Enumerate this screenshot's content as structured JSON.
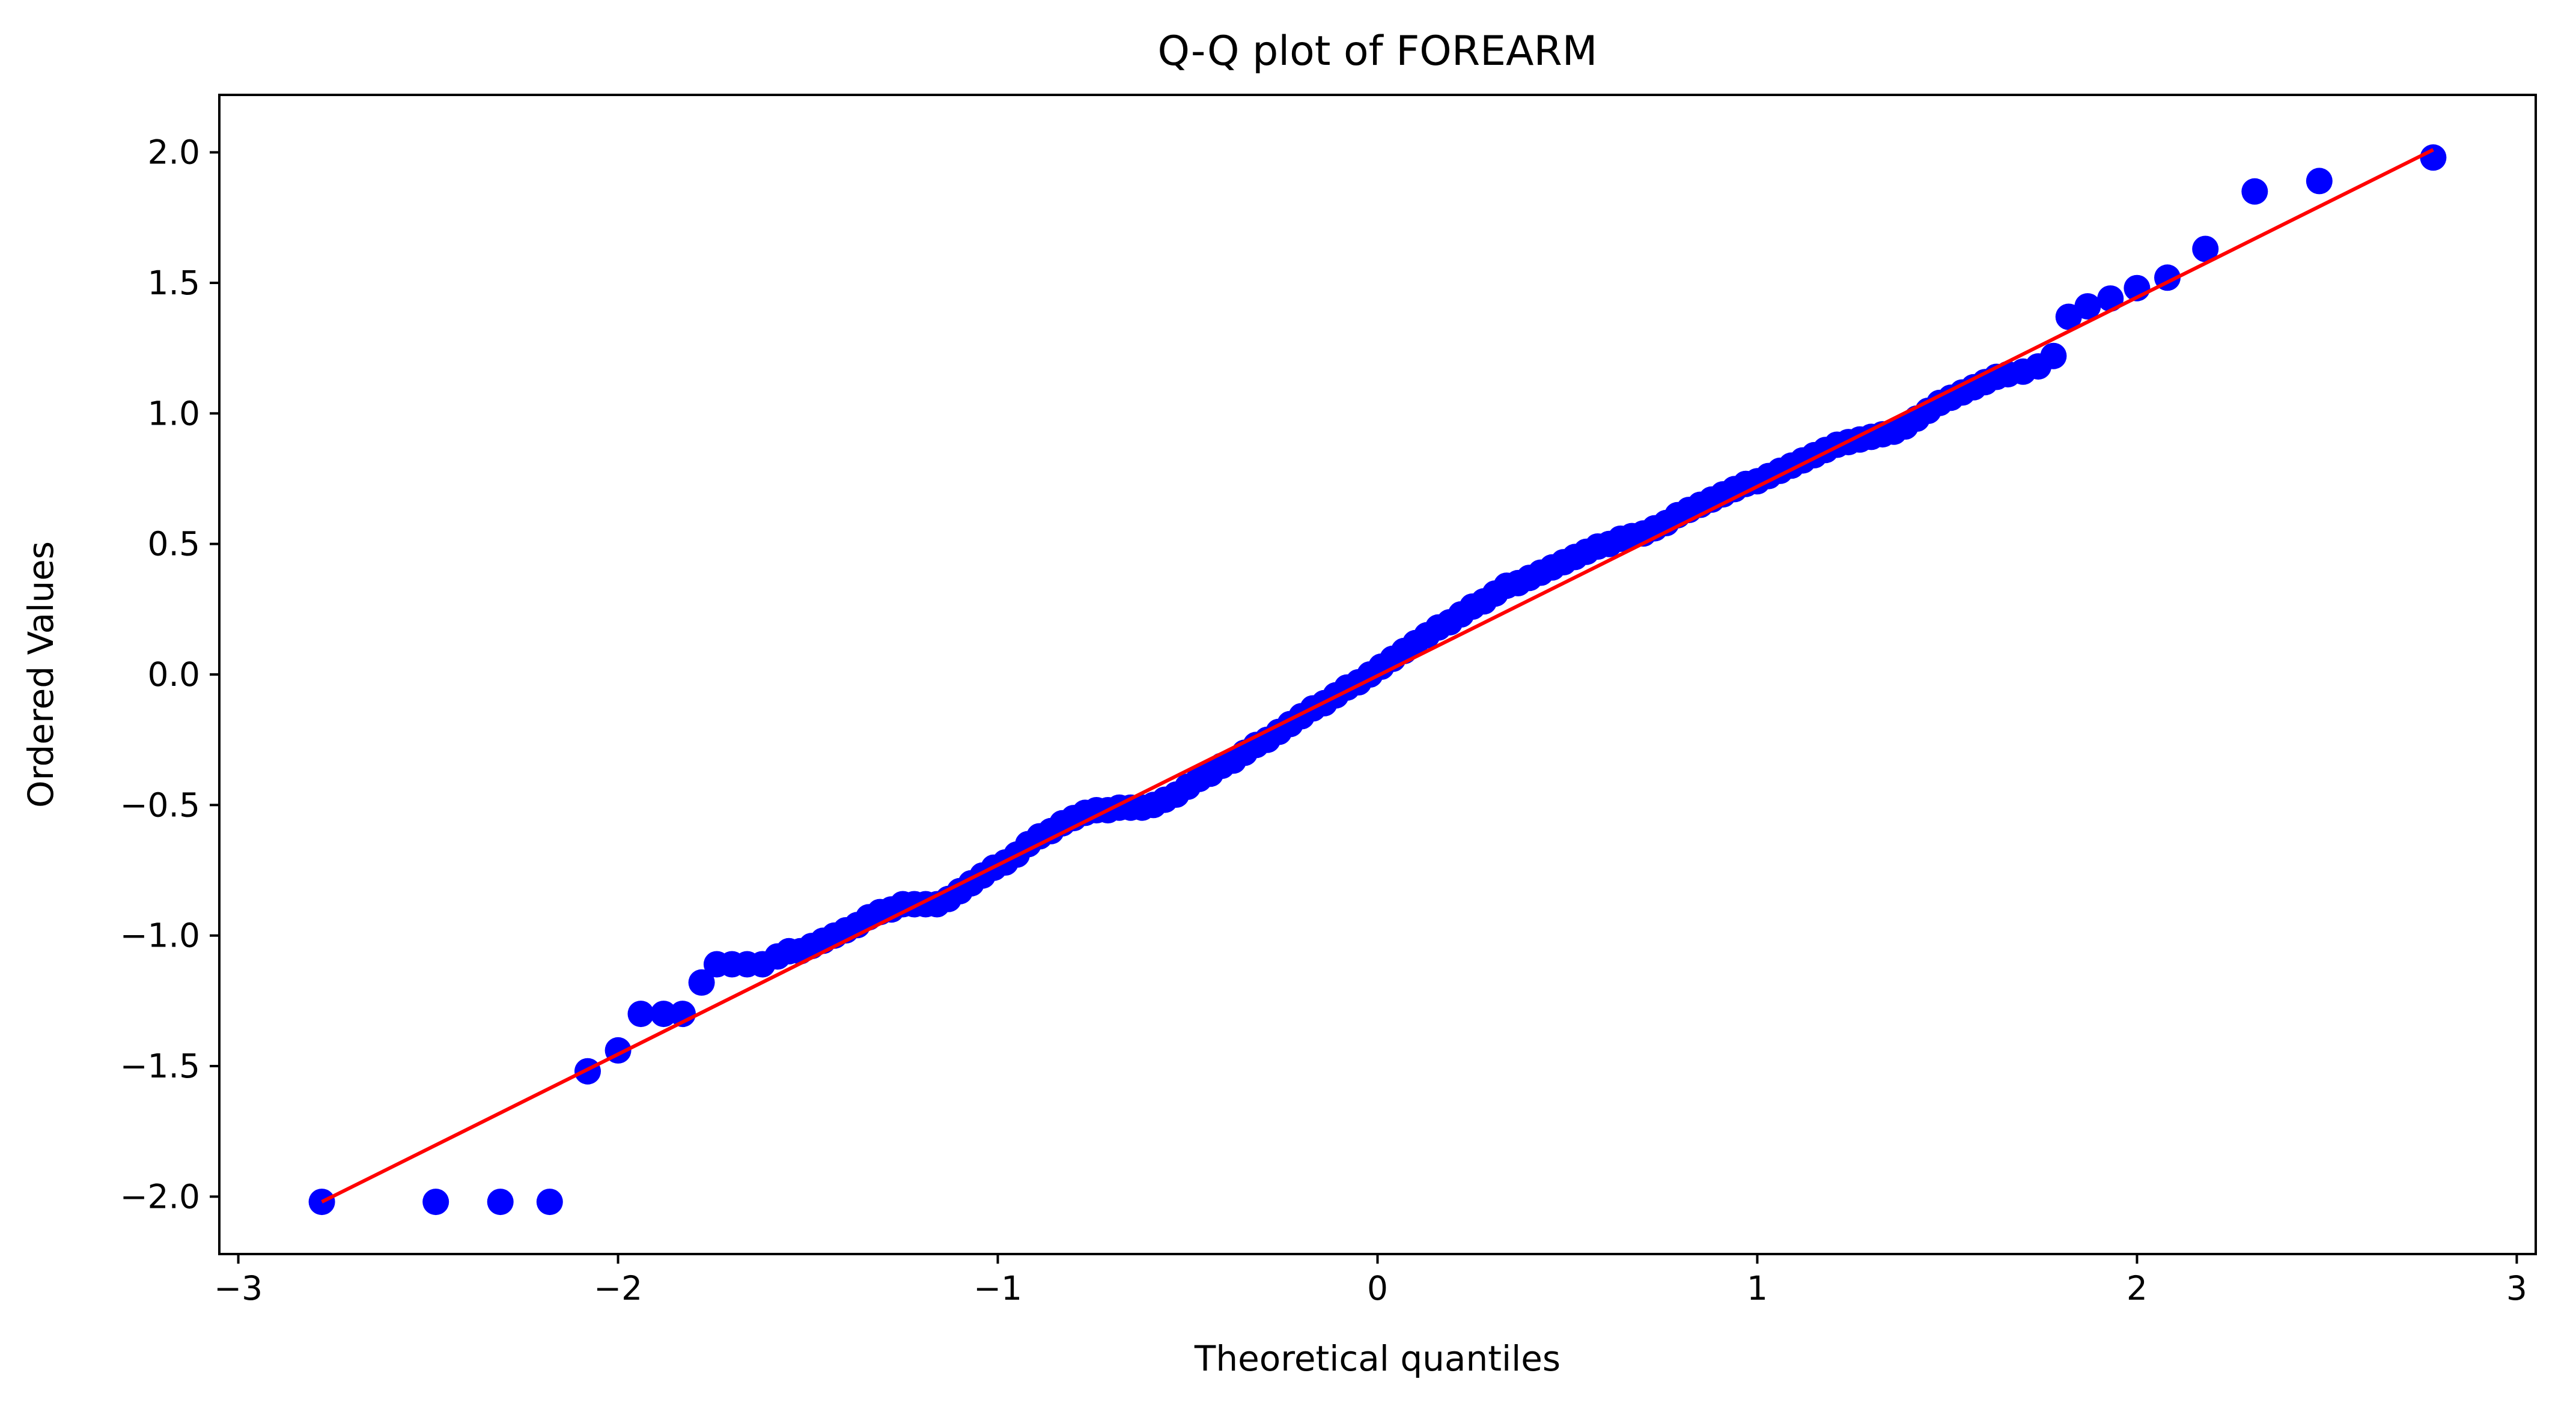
{
  "chart_data": {
    "type": "scatter",
    "title": "Q-Q plot of FOREARM",
    "xlabel": "Theoretical quantiles",
    "ylabel": "Ordered Values",
    "xlim": [
      -3.05,
      3.05
    ],
    "ylim": [
      -2.22,
      2.22
    ],
    "xticks": [
      -3,
      -2,
      -1,
      0,
      1,
      2,
      3
    ],
    "xtick_labels": [
      "−3",
      "−2",
      "−1",
      "0",
      "1",
      "2",
      "3"
    ],
    "yticks": [
      -2.0,
      -1.5,
      -1.0,
      -0.5,
      0.0,
      0.5,
      1.0,
      1.5,
      2.0
    ],
    "ytick_labels": [
      "−2.0",
      "−1.5",
      "−1.0",
      "−0.5",
      "0.0",
      "0.5",
      "1.0",
      "1.5",
      "2.0"
    ],
    "grid": false,
    "legend": "none",
    "colors": {
      "points": "#0000ff",
      "fit_line": "#ff0000",
      "axes": "#000000",
      "background": "#ffffff"
    },
    "fit_line": {
      "x": [
        -2.78,
        2.78
      ],
      "y": [
        -2.02,
        2.01
      ]
    },
    "points": {
      "x": [
        -2.78,
        -2.48,
        -2.31,
        -2.18,
        -2.08,
        -2.0,
        -1.94,
        -1.88,
        -1.83,
        -1.78,
        -1.74,
        -1.7,
        -1.66,
        -1.62,
        -1.58,
        -1.55,
        -1.52,
        -1.49,
        -1.46,
        -1.43,
        -1.4,
        -1.37,
        -1.34,
        -1.31,
        -1.28,
        -1.25,
        -1.22,
        -1.19,
        -1.16,
        -1.13,
        -1.1,
        -1.07,
        -1.04,
        -1.01,
        -0.98,
        -0.95,
        -0.92,
        -0.89,
        -0.86,
        -0.83,
        -0.8,
        -0.77,
        -0.74,
        -0.71,
        -0.68,
        -0.65,
        -0.62,
        -0.59,
        -0.56,
        -0.53,
        -0.5,
        -0.47,
        -0.44,
        -0.41,
        -0.38,
        -0.35,
        -0.32,
        -0.29,
        -0.26,
        -0.23,
        -0.2,
        -0.17,
        -0.14,
        -0.11,
        -0.08,
        -0.05,
        -0.02,
        0.01,
        0.04,
        0.07,
        0.1,
        0.13,
        0.16,
        0.19,
        0.22,
        0.25,
        0.28,
        0.31,
        0.34,
        0.37,
        0.4,
        0.43,
        0.46,
        0.49,
        0.52,
        0.55,
        0.58,
        0.61,
        0.64,
        0.67,
        0.7,
        0.73,
        0.76,
        0.79,
        0.82,
        0.85,
        0.88,
        0.91,
        0.94,
        0.97,
        1.0,
        1.03,
        1.06,
        1.09,
        1.12,
        1.15,
        1.18,
        1.21,
        1.24,
        1.27,
        1.3,
        1.33,
        1.36,
        1.39,
        1.42,
        1.45,
        1.48,
        1.51,
        1.54,
        1.57,
        1.6,
        1.63,
        1.66,
        1.7,
        1.74,
        1.78,
        1.82,
        1.87,
        1.93,
        2.0,
        2.08,
        2.18,
        2.31,
        2.48,
        2.78
      ],
      "y": [
        -2.02,
        -2.02,
        -2.02,
        -2.02,
        -1.52,
        -1.44,
        -1.3,
        -1.3,
        -1.3,
        -1.18,
        -1.11,
        -1.11,
        -1.11,
        -1.11,
        -1.08,
        -1.06,
        -1.06,
        -1.04,
        -1.02,
        -1.0,
        -0.98,
        -0.96,
        -0.93,
        -0.91,
        -0.9,
        -0.88,
        -0.88,
        -0.88,
        -0.88,
        -0.86,
        -0.83,
        -0.8,
        -0.77,
        -0.74,
        -0.72,
        -0.69,
        -0.65,
        -0.62,
        -0.6,
        -0.57,
        -0.55,
        -0.53,
        -0.52,
        -0.52,
        -0.51,
        -0.51,
        -0.51,
        -0.5,
        -0.48,
        -0.46,
        -0.43,
        -0.4,
        -0.38,
        -0.35,
        -0.33,
        -0.3,
        -0.27,
        -0.25,
        -0.22,
        -0.19,
        -0.16,
        -0.13,
        -0.11,
        -0.08,
        -0.05,
        -0.03,
        0.0,
        0.03,
        0.06,
        0.09,
        0.12,
        0.15,
        0.18,
        0.2,
        0.23,
        0.26,
        0.28,
        0.31,
        0.34,
        0.35,
        0.37,
        0.39,
        0.41,
        0.43,
        0.45,
        0.47,
        0.49,
        0.5,
        0.52,
        0.53,
        0.54,
        0.56,
        0.58,
        0.61,
        0.63,
        0.65,
        0.67,
        0.69,
        0.71,
        0.73,
        0.74,
        0.76,
        0.78,
        0.8,
        0.82,
        0.84,
        0.86,
        0.88,
        0.89,
        0.9,
        0.91,
        0.92,
        0.93,
        0.95,
        0.98,
        1.01,
        1.04,
        1.06,
        1.08,
        1.1,
        1.12,
        1.14,
        1.15,
        1.16,
        1.18,
        1.22,
        1.37,
        1.41,
        1.44,
        1.48,
        1.52,
        1.63,
        1.85,
        1.89,
        1.98
      ]
    }
  }
}
